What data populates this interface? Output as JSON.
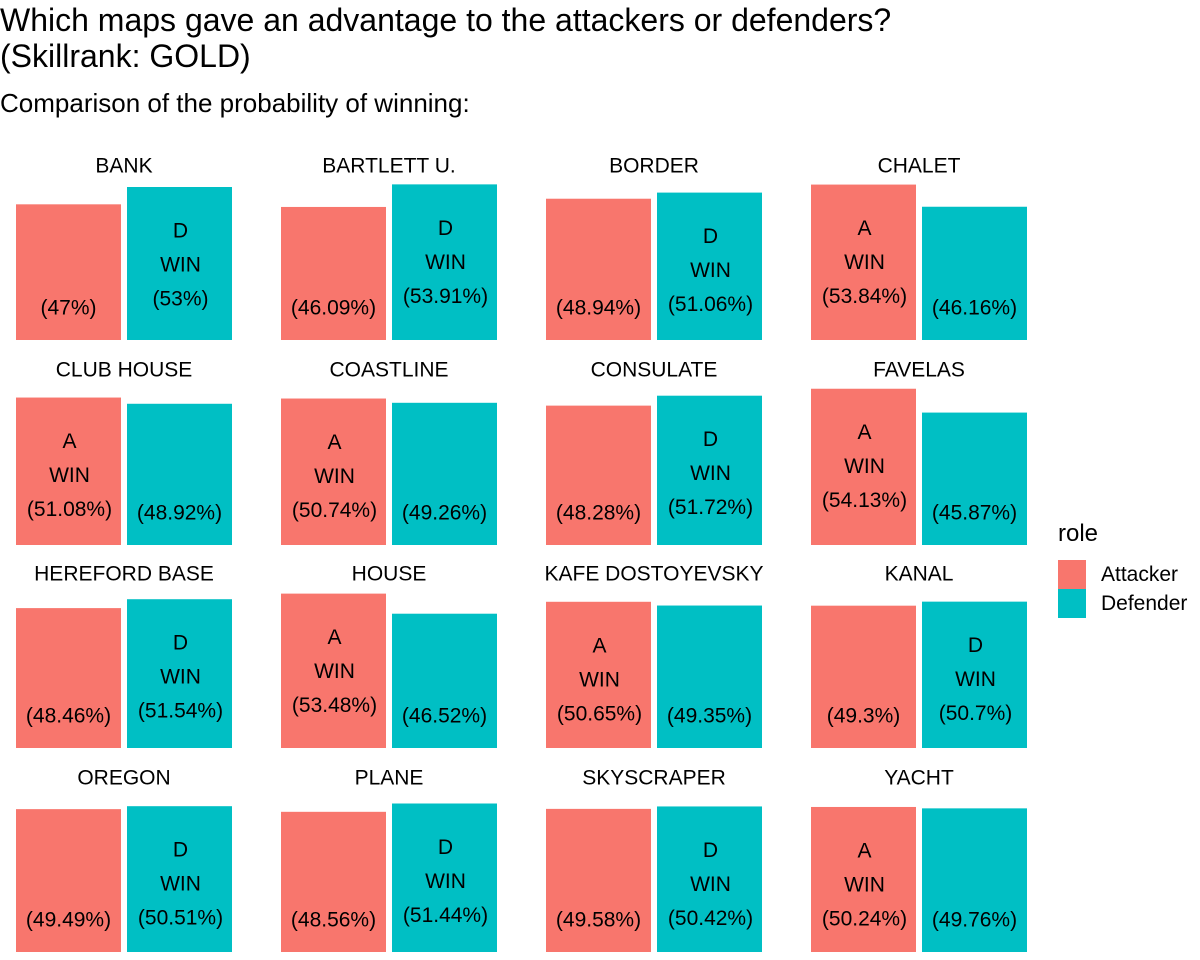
{
  "chart_data": {
    "type": "bar",
    "title": "Which maps gave an advantage to the attackers or defenders?\n(Skillrank: GOLD)",
    "subtitle": "Comparison of the probability of winning:",
    "legend": {
      "title": "role",
      "placement": "right",
      "entries": [
        {
          "name": "Attacker",
          "color": "#F8766D"
        },
        {
          "name": "Defender",
          "color": "#00BFC4"
        }
      ]
    },
    "grid": false,
    "ylim": [
      0,
      56
    ],
    "win_text": "WIN",
    "role_letters": {
      "Attacker": "A",
      "Defender": "D"
    },
    "facets": [
      {
        "map": "BANK",
        "attacker": 47,
        "defender": 53,
        "attacker_label": "(47%)",
        "defender_label": "(53%)",
        "winner": "Defender"
      },
      {
        "map": "BARTLETT U.",
        "attacker": 46.09,
        "defender": 53.91,
        "attacker_label": "(46.09%)",
        "defender_label": "(53.91%)",
        "winner": "Defender"
      },
      {
        "map": "BORDER",
        "attacker": 48.94,
        "defender": 51.06,
        "attacker_label": "(48.94%)",
        "defender_label": "(51.06%)",
        "winner": "Defender"
      },
      {
        "map": "CHALET",
        "attacker": 53.84,
        "defender": 46.16,
        "attacker_label": "(53.84%)",
        "defender_label": "(46.16%)",
        "winner": "Attacker"
      },
      {
        "map": "CLUB HOUSE",
        "attacker": 51.08,
        "defender": 48.92,
        "attacker_label": "(51.08%)",
        "defender_label": "(48.92%)",
        "winner": "Attacker"
      },
      {
        "map": "COASTLINE",
        "attacker": 50.74,
        "defender": 49.26,
        "attacker_label": "(50.74%)",
        "defender_label": "(49.26%)",
        "winner": "Attacker"
      },
      {
        "map": "CONSULATE",
        "attacker": 48.28,
        "defender": 51.72,
        "attacker_label": "(48.28%)",
        "defender_label": "(51.72%)",
        "winner": "Defender"
      },
      {
        "map": "FAVELAS",
        "attacker": 54.13,
        "defender": 45.87,
        "attacker_label": "(54.13%)",
        "defender_label": "(45.87%)",
        "winner": "Attacker"
      },
      {
        "map": "HEREFORD BASE",
        "attacker": 48.46,
        "defender": 51.54,
        "attacker_label": "(48.46%)",
        "defender_label": "(51.54%)",
        "winner": "Defender"
      },
      {
        "map": "HOUSE",
        "attacker": 53.48,
        "defender": 46.52,
        "attacker_label": "(53.48%)",
        "defender_label": "(46.52%)",
        "winner": "Attacker"
      },
      {
        "map": "KAFE DOSTOYEVSKY",
        "attacker": 50.65,
        "defender": 49.35,
        "attacker_label": "(50.65%)",
        "defender_label": "(49.35%)",
        "winner": "Attacker"
      },
      {
        "map": "KANAL",
        "attacker": 49.3,
        "defender": 50.7,
        "attacker_label": "(49.3%)",
        "defender_label": "(50.7%)",
        "winner": "Defender"
      },
      {
        "map": "OREGON",
        "attacker": 49.49,
        "defender": 50.51,
        "attacker_label": "(49.49%)",
        "defender_label": "(50.51%)",
        "winner": "Defender"
      },
      {
        "map": "PLANE",
        "attacker": 48.56,
        "defender": 51.44,
        "attacker_label": "(48.56%)",
        "defender_label": "(51.44%)",
        "winner": "Defender"
      },
      {
        "map": "SKYSCRAPER",
        "attacker": 49.58,
        "defender": 50.42,
        "attacker_label": "(49.58%)",
        "defender_label": "(50.42%)",
        "winner": "Defender"
      },
      {
        "map": "YACHT",
        "attacker": 50.24,
        "defender": 49.76,
        "attacker_label": "(50.24%)",
        "defender_label": "(49.76%)",
        "winner": "Attacker"
      }
    ]
  }
}
